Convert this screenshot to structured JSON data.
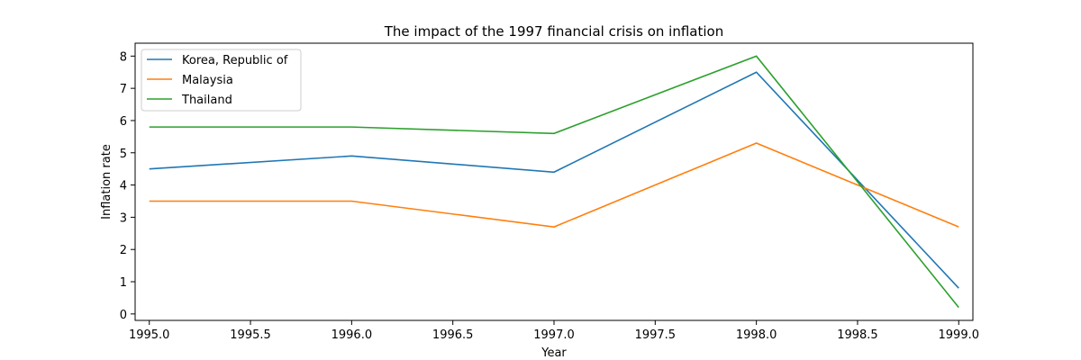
{
  "chart_data": {
    "type": "line",
    "title": "The impact of the 1997 financial crisis on inflation",
    "xlabel": "Year",
    "ylabel": "Inflation rate",
    "x": [
      1995,
      1996,
      1997,
      1998,
      1999
    ],
    "series": [
      {
        "name": "Korea, Republic of",
        "values": [
          4.5,
          4.9,
          4.4,
          7.5,
          0.8
        ],
        "color": "#1f77b4"
      },
      {
        "name": "Malaysia",
        "values": [
          3.5,
          3.5,
          2.7,
          5.3,
          2.7
        ],
        "color": "#ff7f0e"
      },
      {
        "name": "Thailand",
        "values": [
          5.8,
          5.8,
          5.6,
          8.0,
          0.2
        ],
        "color": "#2ca02c"
      }
    ],
    "xlim": [
      1994.93,
      1999.07
    ],
    "ylim": [
      -0.2,
      8.4
    ],
    "xticks": [
      "1995.0",
      "1995.5",
      "1996.0",
      "1996.5",
      "1997.0",
      "1997.5",
      "1998.0",
      "1998.5",
      "1999.0"
    ],
    "yticks": [
      "0",
      "1",
      "2",
      "3",
      "4",
      "5",
      "6",
      "7",
      "8"
    ],
    "grid": false,
    "legend_position": "upper left"
  }
}
